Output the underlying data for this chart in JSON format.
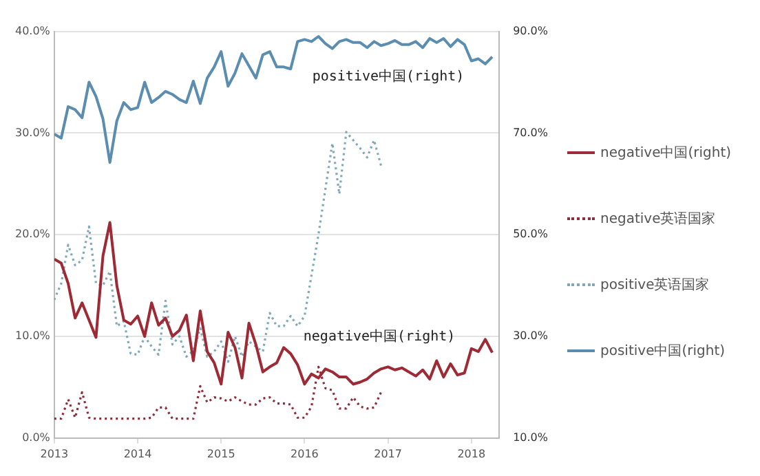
{
  "chart_data": {
    "type": "line",
    "x": [
      "2013-01",
      "2013-02",
      "2013-03",
      "2013-04",
      "2013-05",
      "2013-06",
      "2013-07",
      "2013-08",
      "2013-09",
      "2013-10",
      "2013-11",
      "2013-12",
      "2014-01",
      "2014-02",
      "2014-03",
      "2014-04",
      "2014-05",
      "2014-06",
      "2014-07",
      "2014-08",
      "2014-09",
      "2014-10",
      "2014-11",
      "2014-12",
      "2015-01",
      "2015-02",
      "2015-03",
      "2015-04",
      "2015-05",
      "2015-06",
      "2015-07",
      "2015-08",
      "2015-09",
      "2015-10",
      "2015-11",
      "2015-12",
      "2016-01",
      "2016-02",
      "2016-03",
      "2016-04",
      "2016-05",
      "2016-06",
      "2016-07",
      "2016-08",
      "2016-09",
      "2016-10",
      "2016-11",
      "2016-12",
      "2017-01",
      "2017-02",
      "2017-03",
      "2017-04",
      "2017-05",
      "2017-06",
      "2017-07",
      "2017-08",
      "2017-09",
      "2017-10",
      "2017-11",
      "2017-12",
      "2018-01",
      "2018-02",
      "2018-03",
      "2018-04"
    ],
    "series": [
      {
        "name": "negative中国(right)",
        "color": "#9e2a35",
        "axis": "y2",
        "line_style": "solid",
        "values": [
          45.2,
          44.4,
          40.4,
          33.6,
          36.6,
          33.2,
          29.8,
          45.8,
          52.4,
          40.0,
          33.2,
          32.4,
          34.0,
          30.0,
          36.6,
          32.2,
          33.6,
          30.0,
          31.2,
          34.2,
          25.2,
          35.0,
          27.0,
          24.8,
          20.6,
          30.8,
          27.8,
          21.8,
          32.6,
          28.4,
          23.0,
          24.0,
          24.8,
          27.8,
          26.6,
          24.4,
          20.6,
          22.6,
          21.8,
          23.6,
          23.0,
          22.0,
          22.0,
          20.6,
          21.0,
          21.6,
          22.8,
          23.6,
          24.0,
          23.4,
          23.8,
          23.0,
          22.2,
          23.4,
          21.6,
          25.2,
          22.0,
          24.6,
          22.4,
          22.8,
          27.6,
          27.0,
          29.4,
          26.8
        ]
      },
      {
        "name": "negative英语国家",
        "color": "#8b2d3a",
        "axis": "y",
        "line_style": "dotted",
        "values": [
          1.9,
          1.9,
          3.8,
          2.0,
          4.5,
          2.0,
          1.9,
          1.9,
          1.9,
          1.9,
          1.9,
          1.9,
          1.9,
          1.9,
          2.0,
          3.0,
          3.0,
          1.9,
          1.9,
          1.9,
          1.9,
          5.1,
          3.5,
          4.0,
          3.9,
          3.6,
          4.0,
          3.6,
          3.3,
          3.3,
          3.9,
          4.0,
          3.4,
          3.4,
          3.3,
          2.0,
          2.0,
          3.1,
          7.0,
          4.9,
          4.7,
          2.9,
          2.9,
          4.0,
          3.1,
          2.9,
          3.0,
          4.5,
          null,
          null,
          null,
          null,
          null,
          null,
          null,
          null,
          null,
          null,
          null,
          null,
          null,
          null,
          null,
          null
        ]
      },
      {
        "name": "positive英语国家",
        "color": "#7fa8b8",
        "axis": "y",
        "line_style": "dotted",
        "values": [
          13.6,
          15.2,
          19.0,
          17.0,
          17.5,
          20.8,
          15.2,
          15.0,
          16.4,
          11.0,
          11.5,
          8.3,
          8.2,
          10.0,
          9.0,
          8.2,
          13.5,
          9.2,
          10.0,
          8.0,
          8.6,
          10.8,
          8.0,
          8.5,
          9.5,
          7.5,
          10.0,
          8.0,
          9.5,
          9.0,
          8.5,
          12.3,
          11.0,
          11.0,
          12.0,
          11.0,
          12.0,
          16.0,
          20.0,
          24.5,
          29.0,
          24.0,
          30.1,
          29.3,
          28.5,
          27.6,
          29.3,
          26.8,
          null,
          null,
          null,
          null,
          null,
          null,
          null,
          null,
          null,
          null,
          null,
          null,
          null,
          null,
          null,
          null
        ]
      },
      {
        "name": "positive中国(right)",
        "color": "#5b8db0",
        "axis": "y2",
        "line_style": "solid",
        "values": [
          69.8,
          69.0,
          75.2,
          74.6,
          73.0,
          80.0,
          77.2,
          72.8,
          64.2,
          72.4,
          76.0,
          74.6,
          75.0,
          80.0,
          76.0,
          77.0,
          78.2,
          77.6,
          76.6,
          76.0,
          80.2,
          75.8,
          80.8,
          83.0,
          86.0,
          79.2,
          81.8,
          85.6,
          83.2,
          80.8,
          85.4,
          86.0,
          83.0,
          83.0,
          82.6,
          88.0,
          88.4,
          88.0,
          89.0,
          87.6,
          86.6,
          88.0,
          88.4,
          87.8,
          87.8,
          86.8,
          88.0,
          87.2,
          87.6,
          88.2,
          87.4,
          87.4,
          88.0,
          86.8,
          88.6,
          87.8,
          88.6,
          87.0,
          88.4,
          87.4,
          84.2,
          84.6,
          83.6,
          85.0
        ]
      }
    ],
    "xlim": [
      "2013-01",
      "2018-05"
    ],
    "xticks": [
      "2013",
      "2014",
      "2015",
      "2016",
      "2017",
      "2018"
    ],
    "ylim": [
      0,
      40
    ],
    "yticks": [
      {
        "value": 0,
        "label": "0.0%"
      },
      {
        "value": 10,
        "label": "10.0%"
      },
      {
        "value": 20,
        "label": "20.0%"
      },
      {
        "value": 30,
        "label": "30.0%"
      },
      {
        "value": 40,
        "label": "40.0%"
      }
    ],
    "y2lim": [
      10,
      90
    ],
    "y2ticks": [
      {
        "value": 10,
        "label": "10.0%"
      },
      {
        "value": 30,
        "label": "30.0%"
      },
      {
        "value": 50,
        "label": "50.0%"
      },
      {
        "value": 70,
        "label": "70.0%"
      },
      {
        "value": 90,
        "label": "90.0%"
      }
    ],
    "annotations": [
      "positive中国(right)",
      "negative中国(right)"
    ],
    "grid": "y",
    "legend": "right",
    "marker": "none"
  }
}
